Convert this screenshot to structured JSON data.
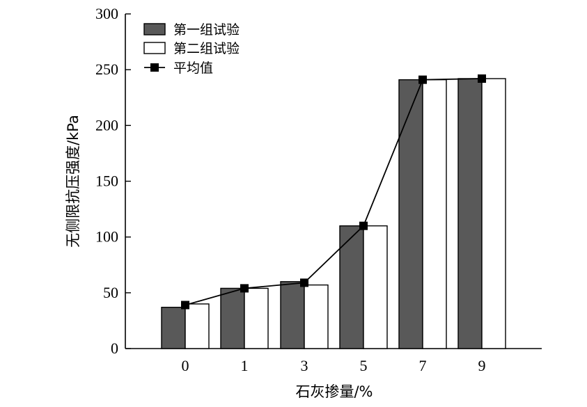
{
  "chart_data": {
    "type": "bar",
    "title": "",
    "xlabel": "石灰掺量/%",
    "ylabel": "无侧限抗压强度/kPa",
    "categories": [
      "0",
      "1",
      "3",
      "5",
      "7",
      "9"
    ],
    "ylim": [
      0,
      300
    ],
    "yticks": [
      0,
      50,
      100,
      150,
      200,
      250,
      300
    ],
    "grid": false,
    "legend_position": "top-left",
    "series": [
      {
        "name": "第一组试验",
        "kind": "bar",
        "color": "#595959",
        "values": [
          37,
          54,
          60,
          110,
          241,
          242
        ]
      },
      {
        "name": "第二组试验",
        "kind": "bar",
        "color": "#ffffff",
        "values": [
          40,
          54,
          57,
          110,
          241,
          242
        ]
      },
      {
        "name": "平均值",
        "kind": "line",
        "color": "#000000",
        "marker": "square",
        "values": [
          39,
          54,
          59,
          110,
          241,
          242
        ]
      }
    ]
  }
}
